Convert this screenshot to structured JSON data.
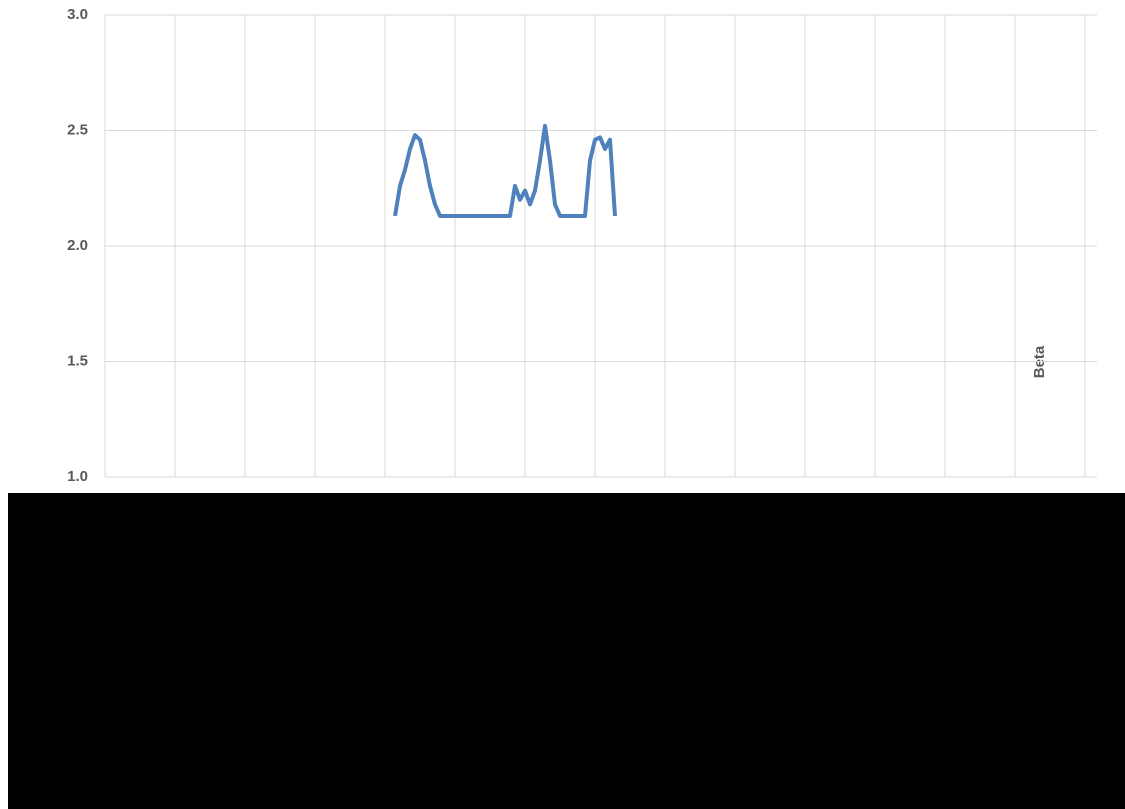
{
  "chart_data": {
    "type": "line",
    "y_label": "Beta",
    "ylim": [
      1.0,
      3.0
    ],
    "yticks": [
      {
        "value": 1.0,
        "label": "1.0"
      },
      {
        "value": 1.5,
        "label": "1.5"
      },
      {
        "value": 2.0,
        "label": "2.0"
      },
      {
        "value": 2.5,
        "label": "2.5"
      },
      {
        "value": 3.0,
        "label": "3.0"
      }
    ],
    "grid": true,
    "series": [
      {
        "color": "#4f81bd",
        "values": [
          2.13,
          2.26,
          2.33,
          2.42,
          2.48,
          2.46,
          2.37,
          2.26,
          2.18,
          2.13,
          2.13,
          2.13,
          2.13,
          2.13,
          2.13,
          2.13,
          2.13,
          2.13,
          2.13,
          2.13,
          2.13,
          2.13,
          2.13,
          2.13,
          2.26,
          2.2,
          2.24,
          2.18,
          2.24,
          2.37,
          2.52,
          2.37,
          2.18,
          2.13,
          2.13,
          2.13,
          2.13,
          2.13,
          2.13,
          2.37,
          2.46,
          2.47,
          2.42,
          2.46,
          2.13
        ]
      }
    ]
  }
}
